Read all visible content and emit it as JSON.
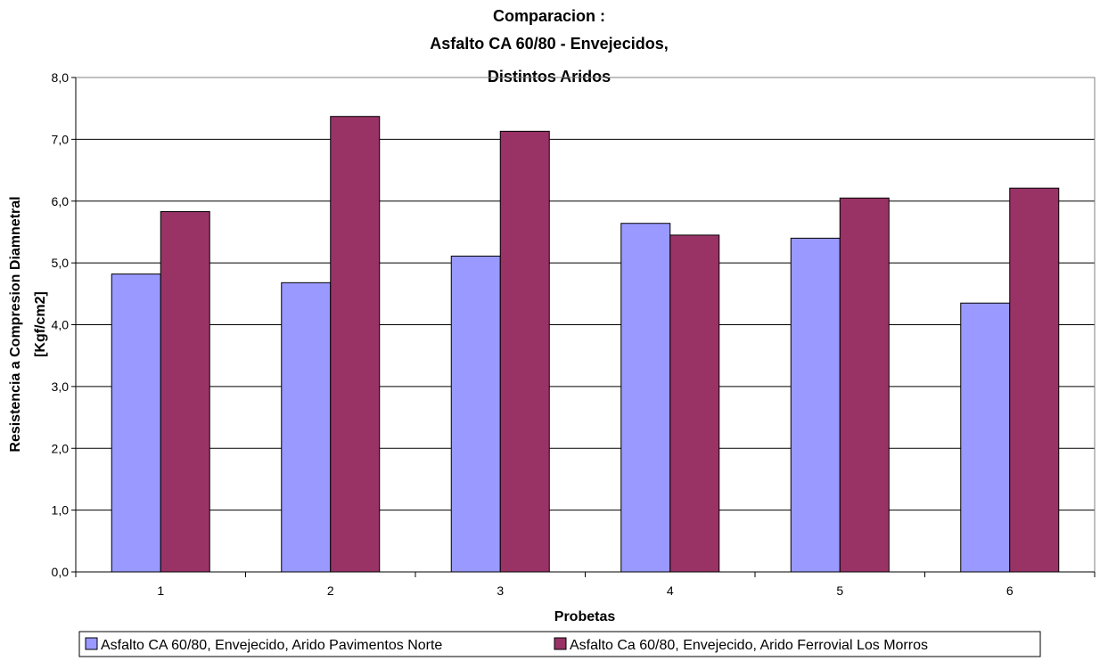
{
  "chart_data": {
    "type": "bar",
    "title_lines": [
      "Comparacion :",
      "Asfalto CA 60/80 - Envejecidos,",
      "Distintos Aridos"
    ],
    "xlabel": "Probetas",
    "ylabel_lines": [
      "Resistencia a Compresion Diamnetral",
      "[Kgf/cm2]"
    ],
    "categories": [
      "1",
      "2",
      "3",
      "4",
      "5",
      "6"
    ],
    "ylim": [
      0,
      8
    ],
    "y_ticks": [
      "0,0",
      "1,0",
      "2,0",
      "3,0",
      "4,0",
      "5,0",
      "6,0",
      "7,0",
      "8,0"
    ],
    "grid": true,
    "legend_position": "bottom",
    "series": [
      {
        "name": "Asfalto CA 60/80, Envejecido, Arido Pavimentos Norte",
        "color": "#9999ff",
        "values": [
          4.82,
          4.68,
          5.11,
          5.64,
          5.4,
          4.35
        ]
      },
      {
        "name": "Asfalto Ca 60/80, Envejecido, Arido Ferrovial Los Morros",
        "color": "#993366",
        "values": [
          5.83,
          7.37,
          7.13,
          5.45,
          6.05,
          6.21
        ]
      }
    ]
  }
}
